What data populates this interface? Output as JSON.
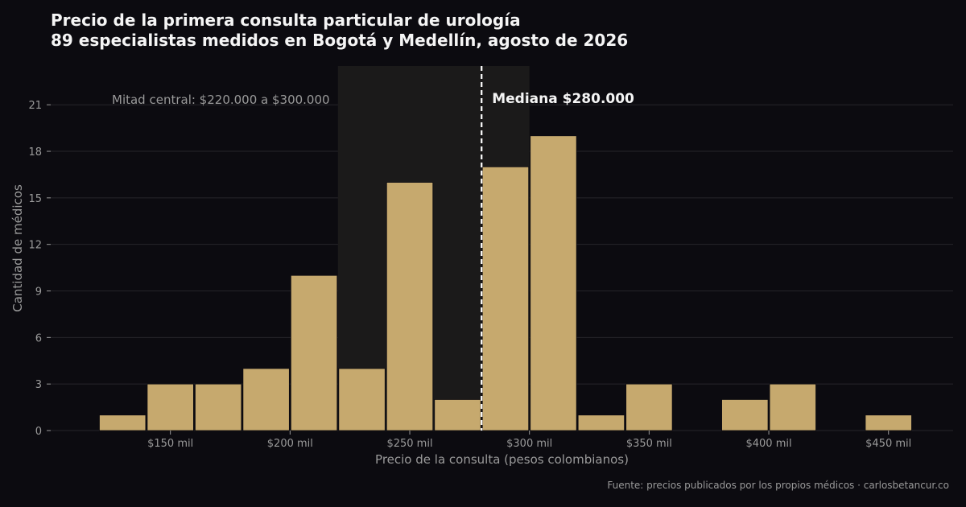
{
  "chart_data": {
    "type": "bar",
    "title": "Precio de la primera consulta particular de urología",
    "subtitle": "89 especialistas medidos en Bogotá y Medellín, agosto de 2026",
    "xlabel": "Precio de la consulta (pesos colombianos)",
    "ylabel": "Cantidad de médicos",
    "bin_width": 20000,
    "bins": [
      {
        "start": 120000,
        "count": 1
      },
      {
        "start": 140000,
        "count": 3
      },
      {
        "start": 160000,
        "count": 3
      },
      {
        "start": 180000,
        "count": 4
      },
      {
        "start": 200000,
        "count": 10
      },
      {
        "start": 220000,
        "count": 4
      },
      {
        "start": 240000,
        "count": 16
      },
      {
        "start": 260000,
        "count": 2
      },
      {
        "start": 280000,
        "count": 17
      },
      {
        "start": 300000,
        "count": 19
      },
      {
        "start": 320000,
        "count": 1
      },
      {
        "start": 340000,
        "count": 3
      },
      {
        "start": 360000,
        "count": 0
      },
      {
        "start": 380000,
        "count": 2
      },
      {
        "start": 400000,
        "count": 3
      },
      {
        "start": 420000,
        "count": 0
      },
      {
        "start": 440000,
        "count": 1
      }
    ],
    "xlim": [
      100000,
      477000
    ],
    "ylim": [
      0,
      23.5
    ],
    "x_ticks": [
      {
        "value": 150000,
        "label": "$150 mil"
      },
      {
        "value": 200000,
        "label": "$200 mil"
      },
      {
        "value": 250000,
        "label": "$250 mil"
      },
      {
        "value": 300000,
        "label": "$300 mil"
      },
      {
        "value": 350000,
        "label": "$350 mil"
      },
      {
        "value": 400000,
        "label": "$400 mil"
      },
      {
        "value": 450000,
        "label": "$450 mil"
      }
    ],
    "y_ticks": [
      0,
      3,
      6,
      9,
      12,
      15,
      18,
      21
    ],
    "grid": "horizontal",
    "median": {
      "value": 280000,
      "label": "Mediana $280.000"
    },
    "iqr": {
      "low": 220000,
      "high": 300000,
      "label": "Mitad central: $220.000 a $300.000"
    },
    "colors": {
      "background": "#0c0b10",
      "bar": "#c6a96e",
      "bar_edge": "#0c0b10",
      "iqr_band": "#1b1a1a",
      "median_line": "#ffffff",
      "grid": "#26252a",
      "text_muted": "#9a9a9a",
      "text_strong": "#f5f5f5"
    }
  },
  "source": "Fuente: precios publicados por los propios médicos · carlosbetancur.co"
}
